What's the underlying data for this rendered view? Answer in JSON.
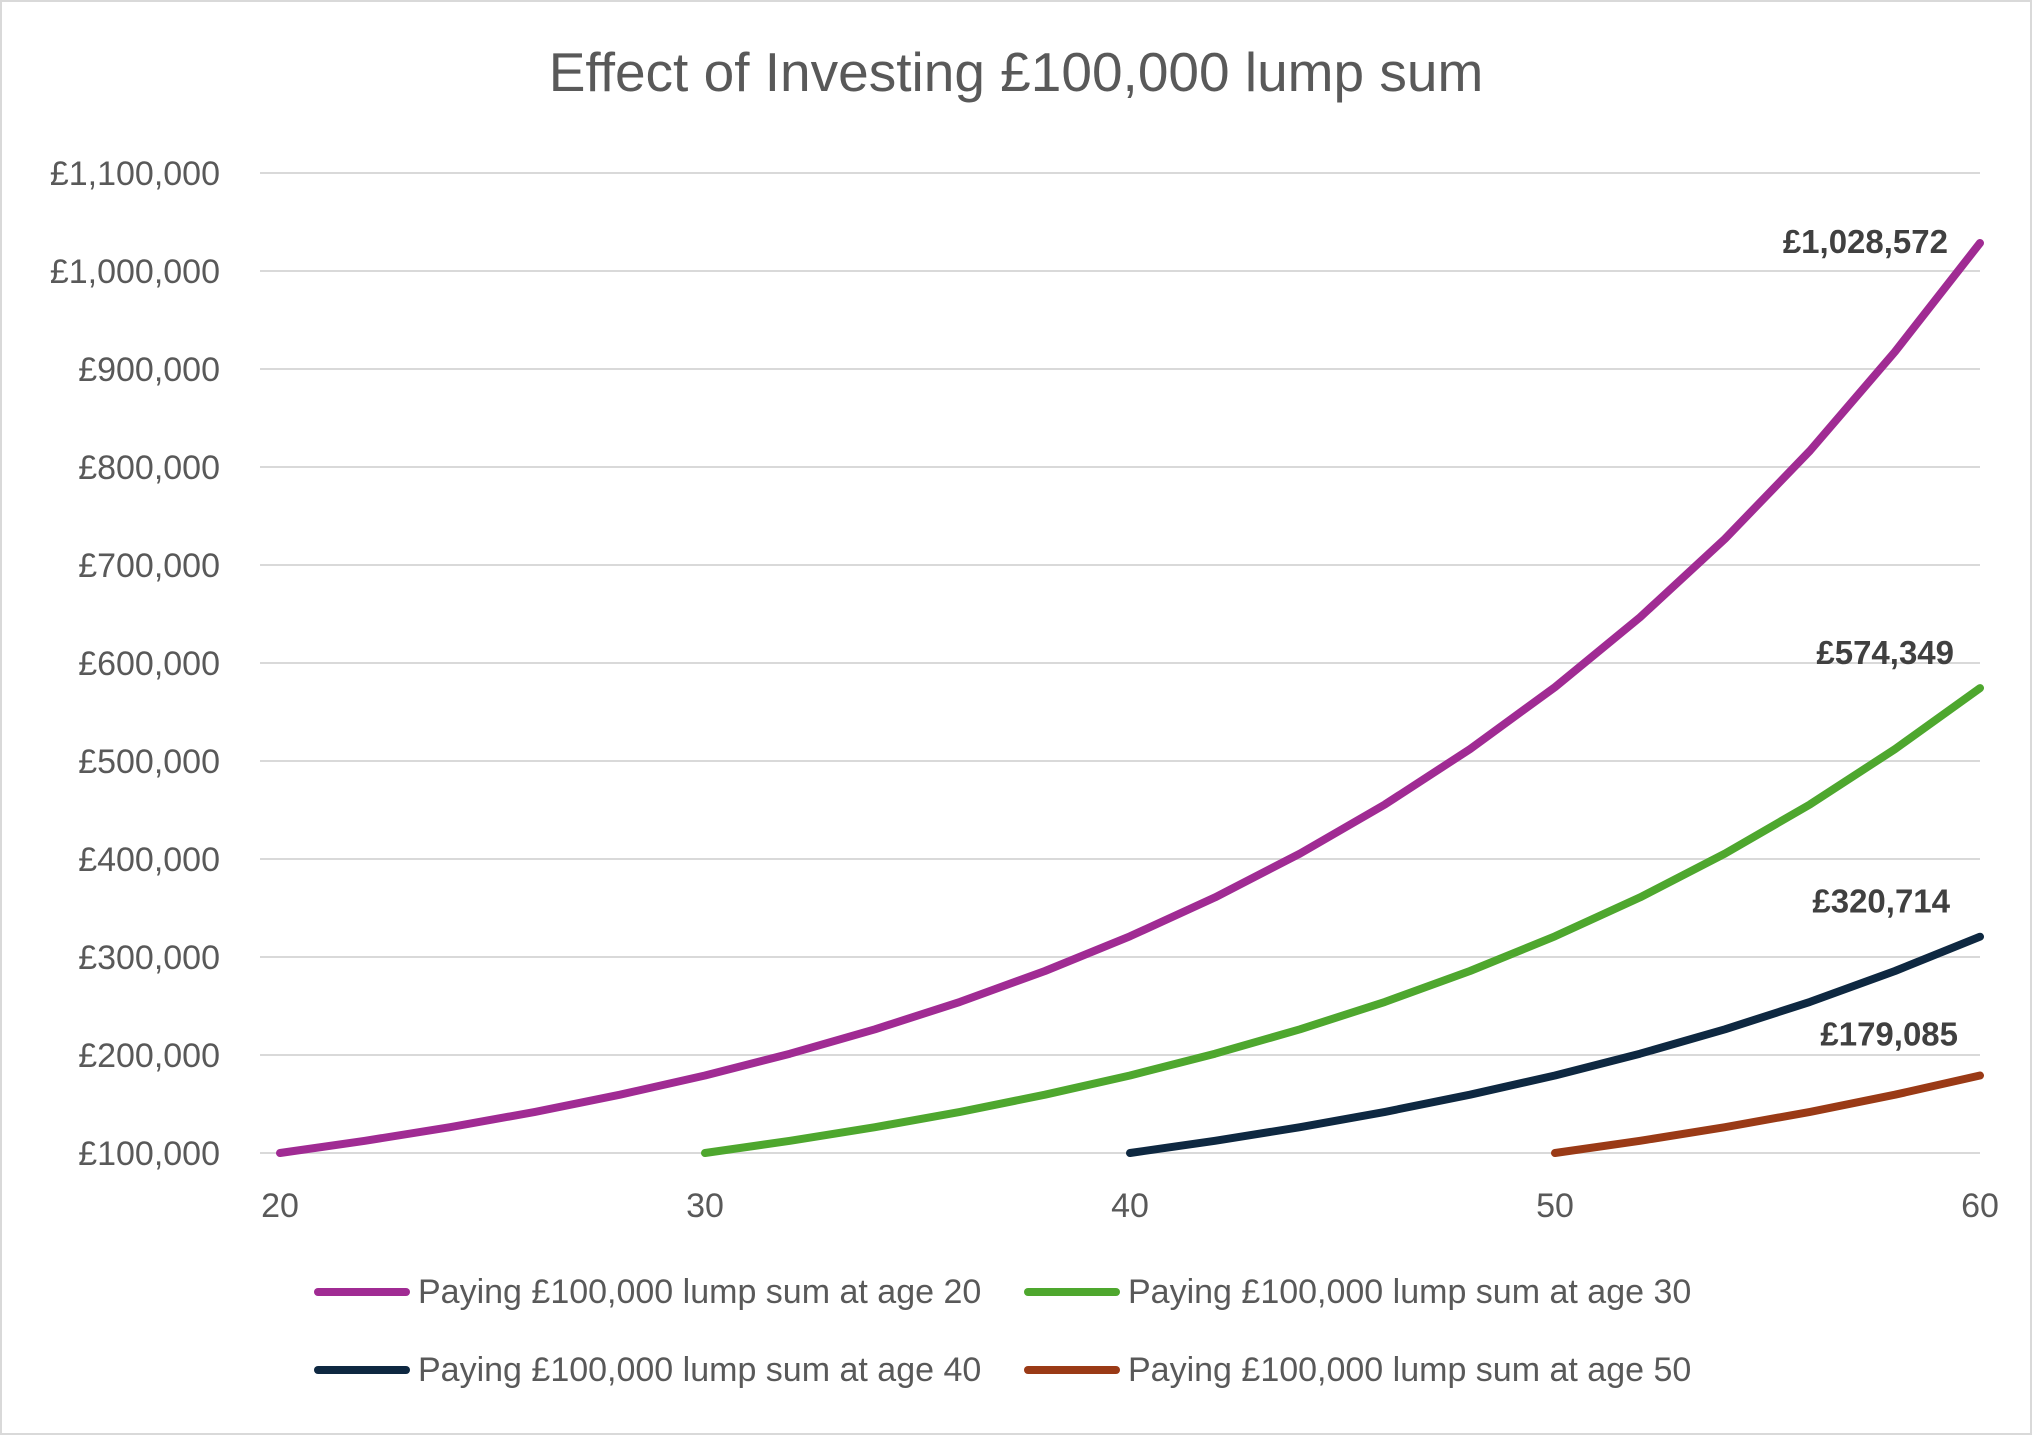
{
  "chart_data": {
    "type": "line",
    "title": "Effect of Investing £100,000 lump sum",
    "xlabel": "",
    "ylabel": "",
    "xlim": [
      20,
      60
    ],
    "ylim": [
      100000,
      1100000
    ],
    "x_ticks": [
      "20",
      "30",
      "40",
      "50",
      "60"
    ],
    "y_ticks": [
      "£100,000",
      "£200,000",
      "£300,000",
      "£400,000",
      "£500,000",
      "£600,000",
      "£700,000",
      "£800,000",
      "£900,000",
      "£1,000,000",
      "£1,100,000"
    ],
    "grid": "horizontal",
    "legend_position": "bottom",
    "series": [
      {
        "name": "Paying £100,000 lump sum at age 20",
        "color": "#A02B93",
        "x": [
          20,
          22,
          24,
          26,
          28,
          30,
          32,
          34,
          36,
          38,
          40,
          42,
          44,
          46,
          48,
          50,
          52,
          54,
          56,
          58,
          60
        ],
        "values": [
          100000,
          112400,
          126300,
          141900,
          159500,
          179100,
          201300,
          226200,
          254200,
          285700,
          321100,
          360800,
          405500,
          455700,
          512100,
          575400,
          646600,
          726700,
          816600,
          917700,
          1028572
        ],
        "end_label": "£1,028,572"
      },
      {
        "name": "Paying £100,000 lump sum at age 30",
        "color": "#4EA72E",
        "x": [
          30,
          32,
          34,
          36,
          38,
          40,
          42,
          44,
          46,
          48,
          50,
          52,
          54,
          56,
          58,
          60
        ],
        "values": [
          100000,
          112400,
          126300,
          141900,
          159500,
          179100,
          201300,
          226200,
          254200,
          285700,
          321100,
          360800,
          405500,
          455700,
          512100,
          574349
        ],
        "end_label": "£574,349"
      },
      {
        "name": "Paying £100,000 lump sum at age 40",
        "color": "#0E2841",
        "x": [
          40,
          42,
          44,
          46,
          48,
          50,
          52,
          54,
          56,
          58,
          60
        ],
        "values": [
          100000,
          112400,
          126300,
          141900,
          159500,
          179100,
          201300,
          226200,
          254200,
          285700,
          320714
        ],
        "end_label": "£320,714"
      },
      {
        "name": "Paying £100,000 lump sum at age 50",
        "color": "#9A3A16",
        "x": [
          50,
          52,
          54,
          56,
          58,
          60
        ],
        "values": [
          100000,
          112400,
          126300,
          141900,
          159500,
          179085
        ],
        "end_label": "£179,085"
      }
    ]
  }
}
